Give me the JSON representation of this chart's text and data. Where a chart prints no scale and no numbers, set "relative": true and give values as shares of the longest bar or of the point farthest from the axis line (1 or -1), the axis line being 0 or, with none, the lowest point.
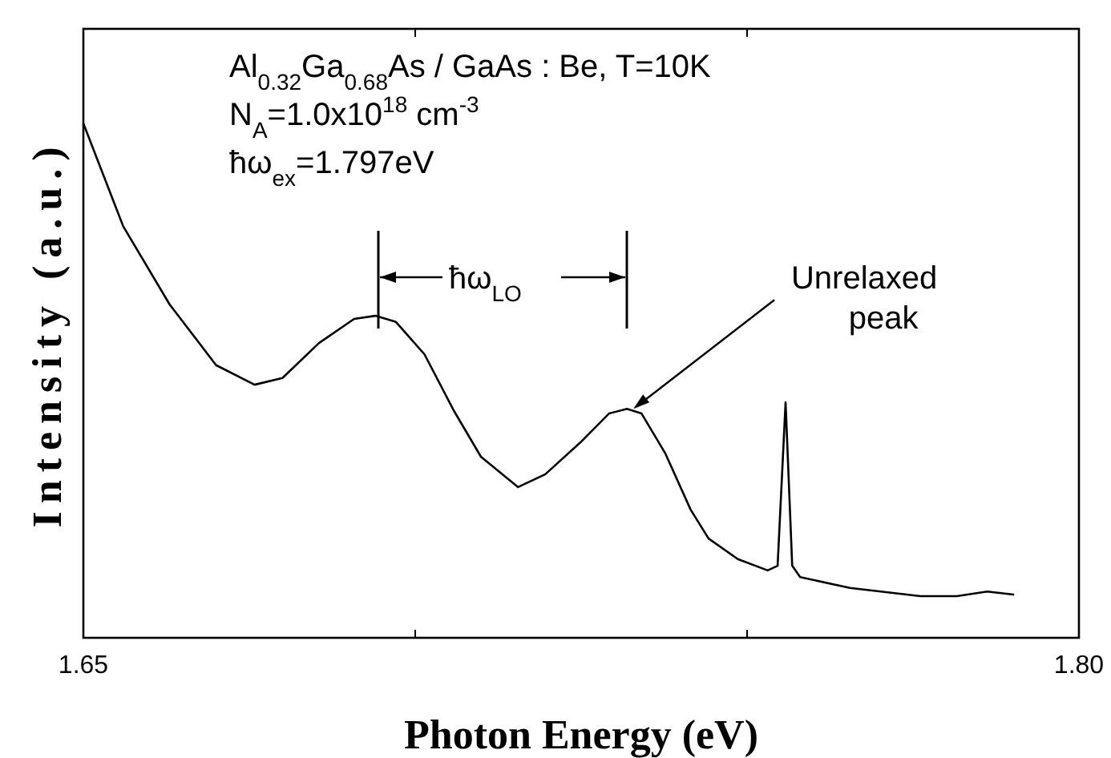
{
  "chart_data": {
    "type": "line",
    "relative": true,
    "xlabel": "Photon Energy (eV)",
    "ylabel": "Intensity (a.u.)",
    "xlim": [
      1.65,
      1.8
    ],
    "xticks": [
      1.65,
      {
        "value": 1.7,
        "label": null
      },
      {
        "value": 1.75,
        "label": null
      },
      {
        "value": 1.8,
        "label": "1.80"
      }
    ],
    "x": [
      1.65,
      1.656,
      1.663,
      1.67,
      1.6758,
      1.68,
      1.6855,
      1.6908,
      1.694,
      1.6971,
      1.7014,
      1.7058,
      1.7099,
      1.7155,
      1.7196,
      1.7249,
      1.7292,
      1.7319,
      1.7341,
      1.7377,
      1.7415,
      1.7442,
      1.7486,
      1.7531,
      1.7546,
      1.7558,
      1.7568,
      1.758,
      1.7655,
      1.7761,
      1.7816,
      1.7862,
      1.7901
    ],
    "series": [
      {
        "color": "#000000",
        "values": [
          1,
          0.8,
          0.648,
          0.53,
          0.492,
          0.505,
          0.573,
          0.62,
          0.626,
          0.614,
          0.551,
          0.442,
          0.352,
          0.293,
          0.318,
          0.38,
          0.436,
          0.445,
          0.436,
          0.358,
          0.249,
          0.193,
          0.153,
          0.131,
          0.14,
          0.458,
          0.14,
          0.118,
          0.097,
          0.081,
          0.081,
          0.09,
          0.084
        ]
      }
    ],
    "marker": "none",
    "line_style": "solid",
    "annotations": [
      "Al$_{0.32}$Ga$_{0.68}$As / GaAs : Be, T=10K",
      "N$_{A}$=1.0x10$^{18}$ cm$^{-3}$",
      "ħω$_{ex}$=1.797eV",
      "ħω$_{LO}$",
      {
        "text": "Unrelaxed peak",
        "x": 1.7319,
        "y": 0.445
      }
    ]
  }
}
